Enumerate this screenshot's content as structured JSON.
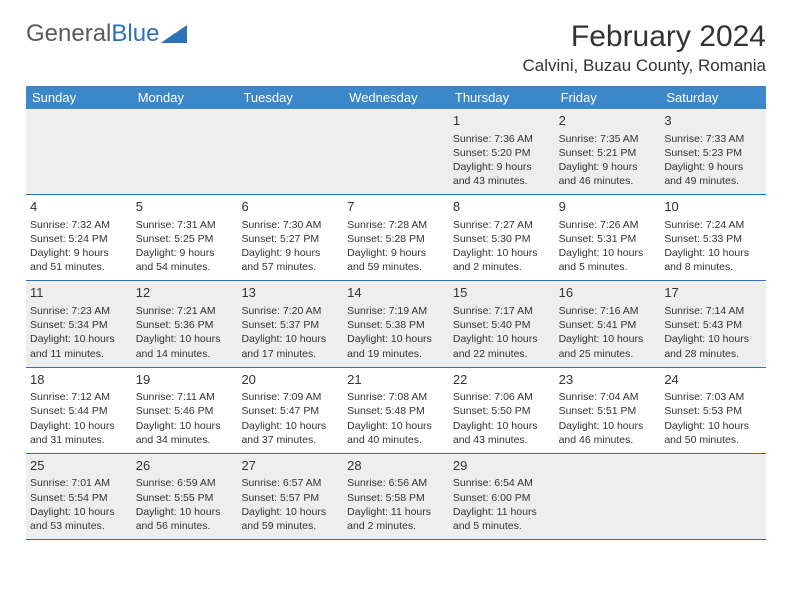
{
  "logo": {
    "text_gray": "General",
    "text_blue": "Blue"
  },
  "header": {
    "month_title": "February 2024",
    "location": "Calvini, Buzau County, Romania"
  },
  "weekdays": [
    "Sunday",
    "Monday",
    "Tuesday",
    "Wednesday",
    "Thursday",
    "Friday",
    "Saturday"
  ],
  "colors": {
    "header_bg": "#3b87c8",
    "rule": "#2d71b8",
    "shaded": "#eeeeee",
    "text": "#333333"
  },
  "weeks": [
    [
      null,
      null,
      null,
      null,
      {
        "n": "1",
        "sr": "7:36 AM",
        "ss": "5:20 PM",
        "dl": "Daylight: 9 hours and 43 minutes."
      },
      {
        "n": "2",
        "sr": "7:35 AM",
        "ss": "5:21 PM",
        "dl": "Daylight: 9 hours and 46 minutes."
      },
      {
        "n": "3",
        "sr": "7:33 AM",
        "ss": "5:23 PM",
        "dl": "Daylight: 9 hours and 49 minutes."
      }
    ],
    [
      {
        "n": "4",
        "sr": "7:32 AM",
        "ss": "5:24 PM",
        "dl": "Daylight: 9 hours and 51 minutes."
      },
      {
        "n": "5",
        "sr": "7:31 AM",
        "ss": "5:25 PM",
        "dl": "Daylight: 9 hours and 54 minutes."
      },
      {
        "n": "6",
        "sr": "7:30 AM",
        "ss": "5:27 PM",
        "dl": "Daylight: 9 hours and 57 minutes."
      },
      {
        "n": "7",
        "sr": "7:28 AM",
        "ss": "5:28 PM",
        "dl": "Daylight: 9 hours and 59 minutes."
      },
      {
        "n": "8",
        "sr": "7:27 AM",
        "ss": "5:30 PM",
        "dl": "Daylight: 10 hours and 2 minutes."
      },
      {
        "n": "9",
        "sr": "7:26 AM",
        "ss": "5:31 PM",
        "dl": "Daylight: 10 hours and 5 minutes."
      },
      {
        "n": "10",
        "sr": "7:24 AM",
        "ss": "5:33 PM",
        "dl": "Daylight: 10 hours and 8 minutes."
      }
    ],
    [
      {
        "n": "11",
        "sr": "7:23 AM",
        "ss": "5:34 PM",
        "dl": "Daylight: 10 hours and 11 minutes."
      },
      {
        "n": "12",
        "sr": "7:21 AM",
        "ss": "5:36 PM",
        "dl": "Daylight: 10 hours and 14 minutes."
      },
      {
        "n": "13",
        "sr": "7:20 AM",
        "ss": "5:37 PM",
        "dl": "Daylight: 10 hours and 17 minutes."
      },
      {
        "n": "14",
        "sr": "7:19 AM",
        "ss": "5:38 PM",
        "dl": "Daylight: 10 hours and 19 minutes."
      },
      {
        "n": "15",
        "sr": "7:17 AM",
        "ss": "5:40 PM",
        "dl": "Daylight: 10 hours and 22 minutes."
      },
      {
        "n": "16",
        "sr": "7:16 AM",
        "ss": "5:41 PM",
        "dl": "Daylight: 10 hours and 25 minutes."
      },
      {
        "n": "17",
        "sr": "7:14 AM",
        "ss": "5:43 PM",
        "dl": "Daylight: 10 hours and 28 minutes."
      }
    ],
    [
      {
        "n": "18",
        "sr": "7:12 AM",
        "ss": "5:44 PM",
        "dl": "Daylight: 10 hours and 31 minutes."
      },
      {
        "n": "19",
        "sr": "7:11 AM",
        "ss": "5:46 PM",
        "dl": "Daylight: 10 hours and 34 minutes."
      },
      {
        "n": "20",
        "sr": "7:09 AM",
        "ss": "5:47 PM",
        "dl": "Daylight: 10 hours and 37 minutes."
      },
      {
        "n": "21",
        "sr": "7:08 AM",
        "ss": "5:48 PM",
        "dl": "Daylight: 10 hours and 40 minutes."
      },
      {
        "n": "22",
        "sr": "7:06 AM",
        "ss": "5:50 PM",
        "dl": "Daylight: 10 hours and 43 minutes."
      },
      {
        "n": "23",
        "sr": "7:04 AM",
        "ss": "5:51 PM",
        "dl": "Daylight: 10 hours and 46 minutes."
      },
      {
        "n": "24",
        "sr": "7:03 AM",
        "ss": "5:53 PM",
        "dl": "Daylight: 10 hours and 50 minutes."
      }
    ],
    [
      {
        "n": "25",
        "sr": "7:01 AM",
        "ss": "5:54 PM",
        "dl": "Daylight: 10 hours and 53 minutes."
      },
      {
        "n": "26",
        "sr": "6:59 AM",
        "ss": "5:55 PM",
        "dl": "Daylight: 10 hours and 56 minutes."
      },
      {
        "n": "27",
        "sr": "6:57 AM",
        "ss": "5:57 PM",
        "dl": "Daylight: 10 hours and 59 minutes."
      },
      {
        "n": "28",
        "sr": "6:56 AM",
        "ss": "5:58 PM",
        "dl": "Daylight: 11 hours and 2 minutes."
      },
      {
        "n": "29",
        "sr": "6:54 AM",
        "ss": "6:00 PM",
        "dl": "Daylight: 11 hours and 5 minutes."
      },
      null,
      null
    ]
  ]
}
